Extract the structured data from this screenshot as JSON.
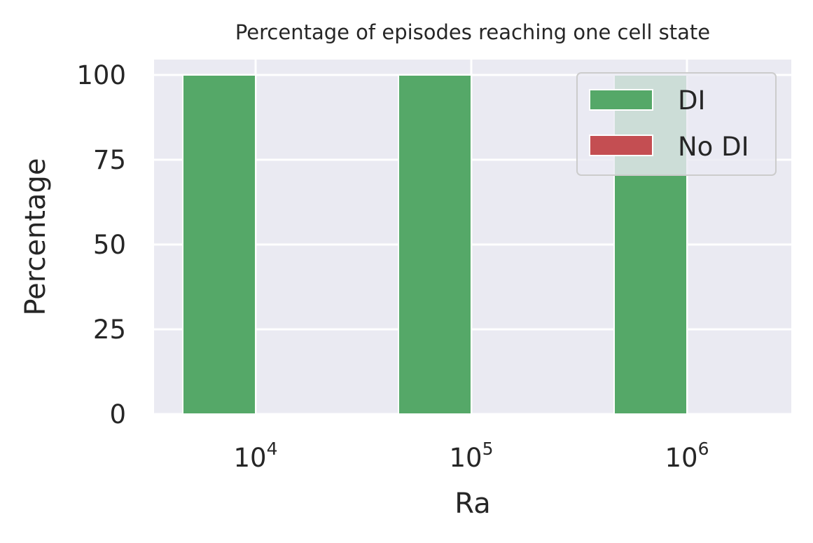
{
  "chart_data": {
    "type": "bar",
    "title": "Percentage of episodes reaching one cell state",
    "xlabel": "Ra",
    "ylabel": "Percentage",
    "categories": [
      {
        "base": "10",
        "exp": "4"
      },
      {
        "base": "10",
        "exp": "5"
      },
      {
        "base": "10",
        "exp": "6"
      }
    ],
    "series": [
      {
        "name": "DI",
        "values": [
          100,
          100,
          100
        ],
        "color": "#55a868"
      },
      {
        "name": "No DI",
        "values": [
          0,
          0,
          0
        ],
        "color": "#c44e52"
      }
    ],
    "yticks": [
      0,
      25,
      50,
      75,
      100
    ],
    "ylim": [
      0,
      105
    ],
    "grid": true,
    "legend": "top-right",
    "background": "#eaeaf2"
  }
}
